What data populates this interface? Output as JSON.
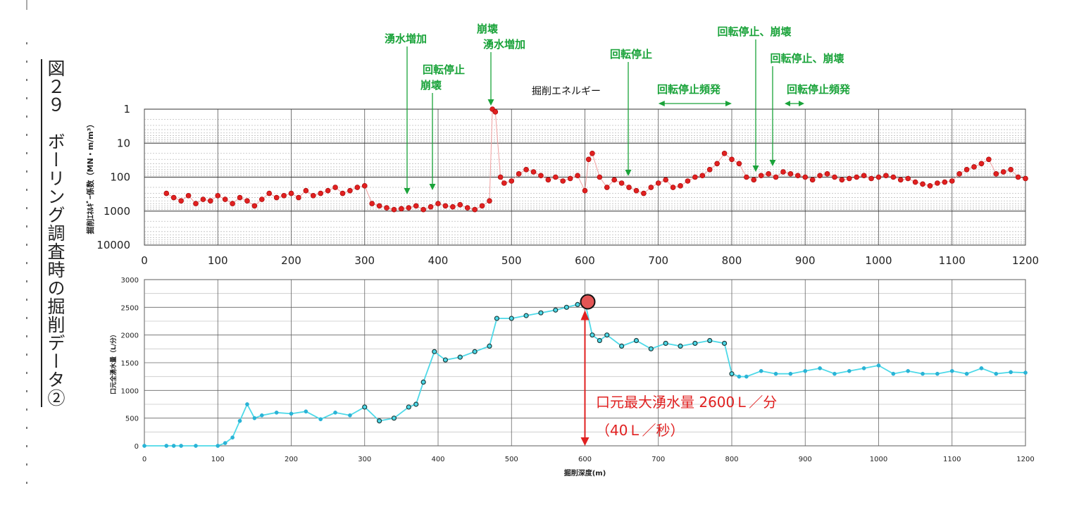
{
  "figure_title": "図２９　ボーリング調査時の掘削データ②",
  "chart_data": [
    {
      "type": "scatter",
      "title": "掘削エネルギー",
      "ylabel": "掘削ｴﾈﾙｷﾞｰ係数（MN・m/m³）",
      "xlabel": "",
      "xlim": [
        0,
        1200
      ],
      "ylim": [
        1,
        10000
      ],
      "yscale": "log-reversed",
      "xticks": [
        "0",
        "100",
        "200",
        "300",
        "400",
        "500",
        "600",
        "700",
        "800",
        "900",
        "1000",
        "1100",
        "1200"
      ],
      "yticks": [
        "1",
        "10",
        "100",
        "1000",
        "10000"
      ],
      "grid": true,
      "color": "#e02020",
      "x": [
        30,
        40,
        50,
        60,
        70,
        80,
        90,
        100,
        110,
        120,
        130,
        140,
        150,
        160,
        170,
        180,
        190,
        200,
        210,
        220,
        230,
        240,
        250,
        260,
        270,
        280,
        290,
        300,
        310,
        320,
        330,
        340,
        350,
        360,
        370,
        380,
        390,
        400,
        410,
        420,
        430,
        440,
        450,
        460,
        470,
        474,
        478,
        485,
        490,
        500,
        510,
        520,
        530,
        540,
        550,
        560,
        570,
        580,
        590,
        600,
        605,
        610,
        620,
        630,
        640,
        650,
        660,
        670,
        680,
        690,
        700,
        710,
        720,
        730,
        740,
        750,
        760,
        770,
        780,
        790,
        800,
        810,
        820,
        830,
        840,
        850,
        860,
        870,
        880,
        890,
        900,
        910,
        920,
        930,
        940,
        950,
        960,
        970,
        980,
        990,
        1000,
        1010,
        1020,
        1030,
        1040,
        1050,
        1060,
        1070,
        1080,
        1090,
        1100,
        1110,
        1120,
        1130,
        1140,
        1150,
        1160,
        1170,
        1180,
        1190,
        1200
      ],
      "values": [
        300,
        400,
        500,
        350,
        600,
        450,
        500,
        350,
        450,
        600,
        400,
        500,
        700,
        450,
        300,
        400,
        350,
        300,
        400,
        250,
        350,
        300,
        250,
        200,
        300,
        250,
        200,
        180,
        600,
        700,
        800,
        900,
        850,
        800,
        700,
        900,
        750,
        600,
        700,
        750,
        650,
        800,
        900,
        700,
        500,
        1,
        1.2,
        100,
        150,
        130,
        80,
        60,
        70,
        90,
        120,
        100,
        130,
        110,
        90,
        250,
        30,
        20,
        100,
        200,
        120,
        150,
        200,
        250,
        300,
        200,
        150,
        120,
        200,
        180,
        130,
        100,
        90,
        60,
        40,
        20,
        30,
        40,
        100,
        120,
        90,
        80,
        100,
        70,
        80,
        90,
        100,
        120,
        90,
        80,
        100,
        120,
        110,
        100,
        90,
        110,
        100,
        90,
        100,
        120,
        110,
        140,
        160,
        180,
        150,
        140,
        130,
        80,
        60,
        50,
        40,
        30,
        80,
        70,
        60,
        100,
        110
      ],
      "annotations": [
        {
          "text": "湧水増加",
          "x": 360
        },
        {
          "text": "回転停止",
          "x": 395
        },
        {
          "text": "崩壊",
          "x": 395
        },
        {
          "text": "崩壊",
          "x": 474
        },
        {
          "text": "湧水増加",
          "x": 474
        },
        {
          "text": "回転停止",
          "x": 660
        },
        {
          "text": "回転停止頻発",
          "x": [
            700,
            800
          ]
        },
        {
          "text": "回転停止、崩壊",
          "x": 837
        },
        {
          "text": "回転停止、崩壊",
          "x": 860
        },
        {
          "text": "回転停止頻発",
          "x": [
            885,
            900
          ]
        }
      ]
    },
    {
      "type": "line",
      "xlabel": "掘削深度(m)",
      "ylabel": "口元全湧水量（L/分）",
      "xlim": [
        0,
        1200
      ],
      "ylim": [
        0,
        3000
      ],
      "xticks": [
        "0",
        "100",
        "200",
        "300",
        "400",
        "500",
        "600",
        "700",
        "800",
        "900",
        "1000",
        "1100",
        "1200"
      ],
      "yticks": [
        "0",
        "500",
        "1000",
        "1500",
        "2000",
        "2500",
        "3000"
      ],
      "grid": true,
      "x": [
        0,
        30,
        40,
        50,
        70,
        100,
        110,
        120,
        130,
        140,
        150,
        160,
        180,
        200,
        220,
        240,
        260,
        280,
        300,
        320,
        340,
        360,
        370,
        380,
        395,
        410,
        430,
        450,
        470,
        480,
        500,
        520,
        540,
        560,
        575,
        590,
        600,
        610,
        620,
        630,
        650,
        670,
        690,
        710,
        730,
        750,
        770,
        790,
        800,
        810,
        820,
        840,
        860,
        880,
        900,
        920,
        940,
        960,
        980,
        1000,
        1020,
        1040,
        1060,
        1080,
        1100,
        1120,
        1140,
        1160,
        1180,
        1200
      ],
      "values": [
        0,
        0,
        0,
        0,
        0,
        0,
        50,
        150,
        450,
        750,
        500,
        550,
        600,
        580,
        620,
        480,
        600,
        550,
        700,
        450,
        500,
        700,
        750,
        1150,
        1700,
        1550,
        1600,
        1700,
        1800,
        2300,
        2300,
        2350,
        2400,
        2450,
        2500,
        2550,
        2600,
        2000,
        1900,
        2000,
        1800,
        1900,
        1750,
        1850,
        1800,
        1850,
        1900,
        1850,
        1300,
        1250,
        1250,
        1350,
        1300,
        1300,
        1350,
        1400,
        1300,
        1350,
        1400,
        1450,
        1300,
        1350,
        1300,
        1300,
        1350,
        1300,
        1400,
        1300,
        1330,
        1320
      ],
      "color": "#4dd9e8",
      "annotations": [
        {
          "text": "口元最大湧水量  2600Ｌ／分",
          "x": 600,
          "y": 2600
        },
        {
          "text": "（40Ｌ／秒）"
        }
      ]
    }
  ]
}
